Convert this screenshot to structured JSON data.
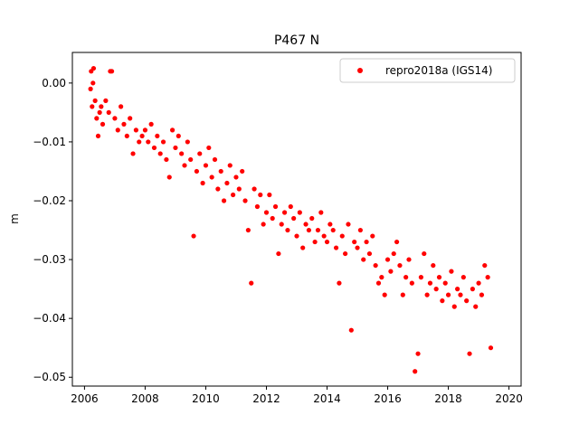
{
  "chart_data": {
    "type": "scatter",
    "title": "P467 N",
    "xlabel": "",
    "ylabel": "m",
    "xlim": [
      2005.6,
      2020.4
    ],
    "ylim": [
      -0.0515,
      0.0052
    ],
    "xticks": [
      2006,
      2008,
      2010,
      2012,
      2014,
      2016,
      2018,
      2020
    ],
    "xtick_labels": [
      "2006",
      "2008",
      "2010",
      "2012",
      "2014",
      "2016",
      "2018",
      "2020"
    ],
    "yticks": [
      0.0,
      -0.01,
      -0.02,
      -0.03,
      -0.04,
      -0.05
    ],
    "ytick_labels": [
      "0.00",
      "−0.01",
      "−0.02",
      "−0.03",
      "−0.04",
      "−0.05"
    ],
    "grid": false,
    "legend_position": "top-right",
    "colors": {
      "series": "#ff0000"
    },
    "series": [
      {
        "name": "repro2018a (IGS14)",
        "marker": "dot",
        "points": [
          [
            2006.2,
            -0.001
          ],
          [
            2006.22,
            0.002
          ],
          [
            2006.25,
            -0.004
          ],
          [
            2006.28,
            0.0
          ],
          [
            2006.3,
            0.0025
          ],
          [
            2006.35,
            -0.003
          ],
          [
            2006.4,
            -0.006
          ],
          [
            2006.45,
            -0.009
          ],
          [
            2006.5,
            -0.005
          ],
          [
            2006.55,
            -0.004
          ],
          [
            2006.6,
            -0.007
          ],
          [
            2006.7,
            -0.003
          ],
          [
            2006.8,
            -0.005
          ],
          [
            2006.85,
            0.002
          ],
          [
            2006.9,
            0.002
          ],
          [
            2007.0,
            -0.006
          ],
          [
            2007.1,
            -0.008
          ],
          [
            2007.2,
            -0.004
          ],
          [
            2007.3,
            -0.007
          ],
          [
            2007.4,
            -0.009
          ],
          [
            2007.5,
            -0.006
          ],
          [
            2007.6,
            -0.012
          ],
          [
            2007.7,
            -0.008
          ],
          [
            2007.8,
            -0.01
          ],
          [
            2007.9,
            -0.009
          ],
          [
            2008.0,
            -0.008
          ],
          [
            2008.1,
            -0.01
          ],
          [
            2008.2,
            -0.007
          ],
          [
            2008.3,
            -0.011
          ],
          [
            2008.4,
            -0.009
          ],
          [
            2008.5,
            -0.012
          ],
          [
            2008.6,
            -0.01
          ],
          [
            2008.7,
            -0.013
          ],
          [
            2008.8,
            -0.016
          ],
          [
            2008.9,
            -0.008
          ],
          [
            2009.0,
            -0.011
          ],
          [
            2009.1,
            -0.009
          ],
          [
            2009.2,
            -0.012
          ],
          [
            2009.3,
            -0.014
          ],
          [
            2009.4,
            -0.01
          ],
          [
            2009.5,
            -0.013
          ],
          [
            2009.6,
            -0.026
          ],
          [
            2009.7,
            -0.015
          ],
          [
            2009.8,
            -0.012
          ],
          [
            2009.9,
            -0.017
          ],
          [
            2010.0,
            -0.014
          ],
          [
            2010.1,
            -0.011
          ],
          [
            2010.2,
            -0.016
          ],
          [
            2010.3,
            -0.013
          ],
          [
            2010.4,
            -0.018
          ],
          [
            2010.5,
            -0.015
          ],
          [
            2010.6,
            -0.02
          ],
          [
            2010.7,
            -0.017
          ],
          [
            2010.8,
            -0.014
          ],
          [
            2010.9,
            -0.019
          ],
          [
            2011.0,
            -0.016
          ],
          [
            2011.1,
            -0.018
          ],
          [
            2011.2,
            -0.015
          ],
          [
            2011.3,
            -0.02
          ],
          [
            2011.4,
            -0.025
          ],
          [
            2011.5,
            -0.034
          ],
          [
            2011.6,
            -0.018
          ],
          [
            2011.7,
            -0.021
          ],
          [
            2011.8,
            -0.019
          ],
          [
            2011.9,
            -0.024
          ],
          [
            2012.0,
            -0.022
          ],
          [
            2012.1,
            -0.019
          ],
          [
            2012.2,
            -0.023
          ],
          [
            2012.3,
            -0.021
          ],
          [
            2012.4,
            -0.029
          ],
          [
            2012.5,
            -0.024
          ],
          [
            2012.6,
            -0.022
          ],
          [
            2012.7,
            -0.025
          ],
          [
            2012.8,
            -0.021
          ],
          [
            2012.9,
            -0.023
          ],
          [
            2013.0,
            -0.026
          ],
          [
            2013.1,
            -0.022
          ],
          [
            2013.2,
            -0.028
          ],
          [
            2013.3,
            -0.024
          ],
          [
            2013.4,
            -0.025
          ],
          [
            2013.5,
            -0.023
          ],
          [
            2013.6,
            -0.027
          ],
          [
            2013.7,
            -0.025
          ],
          [
            2013.8,
            -0.022
          ],
          [
            2013.9,
            -0.026
          ],
          [
            2014.0,
            -0.027
          ],
          [
            2014.1,
            -0.024
          ],
          [
            2014.2,
            -0.025
          ],
          [
            2014.3,
            -0.028
          ],
          [
            2014.4,
            -0.034
          ],
          [
            2014.5,
            -0.026
          ],
          [
            2014.6,
            -0.029
          ],
          [
            2014.7,
            -0.024
          ],
          [
            2014.8,
            -0.042
          ],
          [
            2014.9,
            -0.027
          ],
          [
            2015.0,
            -0.028
          ],
          [
            2015.1,
            -0.025
          ],
          [
            2015.2,
            -0.03
          ],
          [
            2015.3,
            -0.027
          ],
          [
            2015.4,
            -0.029
          ],
          [
            2015.5,
            -0.026
          ],
          [
            2015.6,
            -0.031
          ],
          [
            2015.7,
            -0.034
          ],
          [
            2015.8,
            -0.033
          ],
          [
            2015.9,
            -0.036
          ],
          [
            2016.0,
            -0.03
          ],
          [
            2016.1,
            -0.032
          ],
          [
            2016.2,
            -0.029
          ],
          [
            2016.3,
            -0.027
          ],
          [
            2016.4,
            -0.031
          ],
          [
            2016.5,
            -0.036
          ],
          [
            2016.6,
            -0.033
          ],
          [
            2016.7,
            -0.03
          ],
          [
            2016.8,
            -0.034
          ],
          [
            2016.9,
            -0.049
          ],
          [
            2017.0,
            -0.046
          ],
          [
            2017.1,
            -0.033
          ],
          [
            2017.2,
            -0.029
          ],
          [
            2017.3,
            -0.036
          ],
          [
            2017.4,
            -0.034
          ],
          [
            2017.5,
            -0.031
          ],
          [
            2017.6,
            -0.035
          ],
          [
            2017.7,
            -0.033
          ],
          [
            2017.8,
            -0.037
          ],
          [
            2017.9,
            -0.034
          ],
          [
            2018.0,
            -0.036
          ],
          [
            2018.1,
            -0.032
          ],
          [
            2018.2,
            -0.038
          ],
          [
            2018.3,
            -0.035
          ],
          [
            2018.4,
            -0.036
          ],
          [
            2018.5,
            -0.033
          ],
          [
            2018.6,
            -0.037
          ],
          [
            2018.7,
            -0.046
          ],
          [
            2018.8,
            -0.035
          ],
          [
            2018.9,
            -0.038
          ],
          [
            2019.0,
            -0.034
          ],
          [
            2019.1,
            -0.036
          ],
          [
            2019.2,
            -0.031
          ],
          [
            2019.3,
            -0.033
          ],
          [
            2019.4,
            -0.045
          ]
        ]
      }
    ]
  }
}
